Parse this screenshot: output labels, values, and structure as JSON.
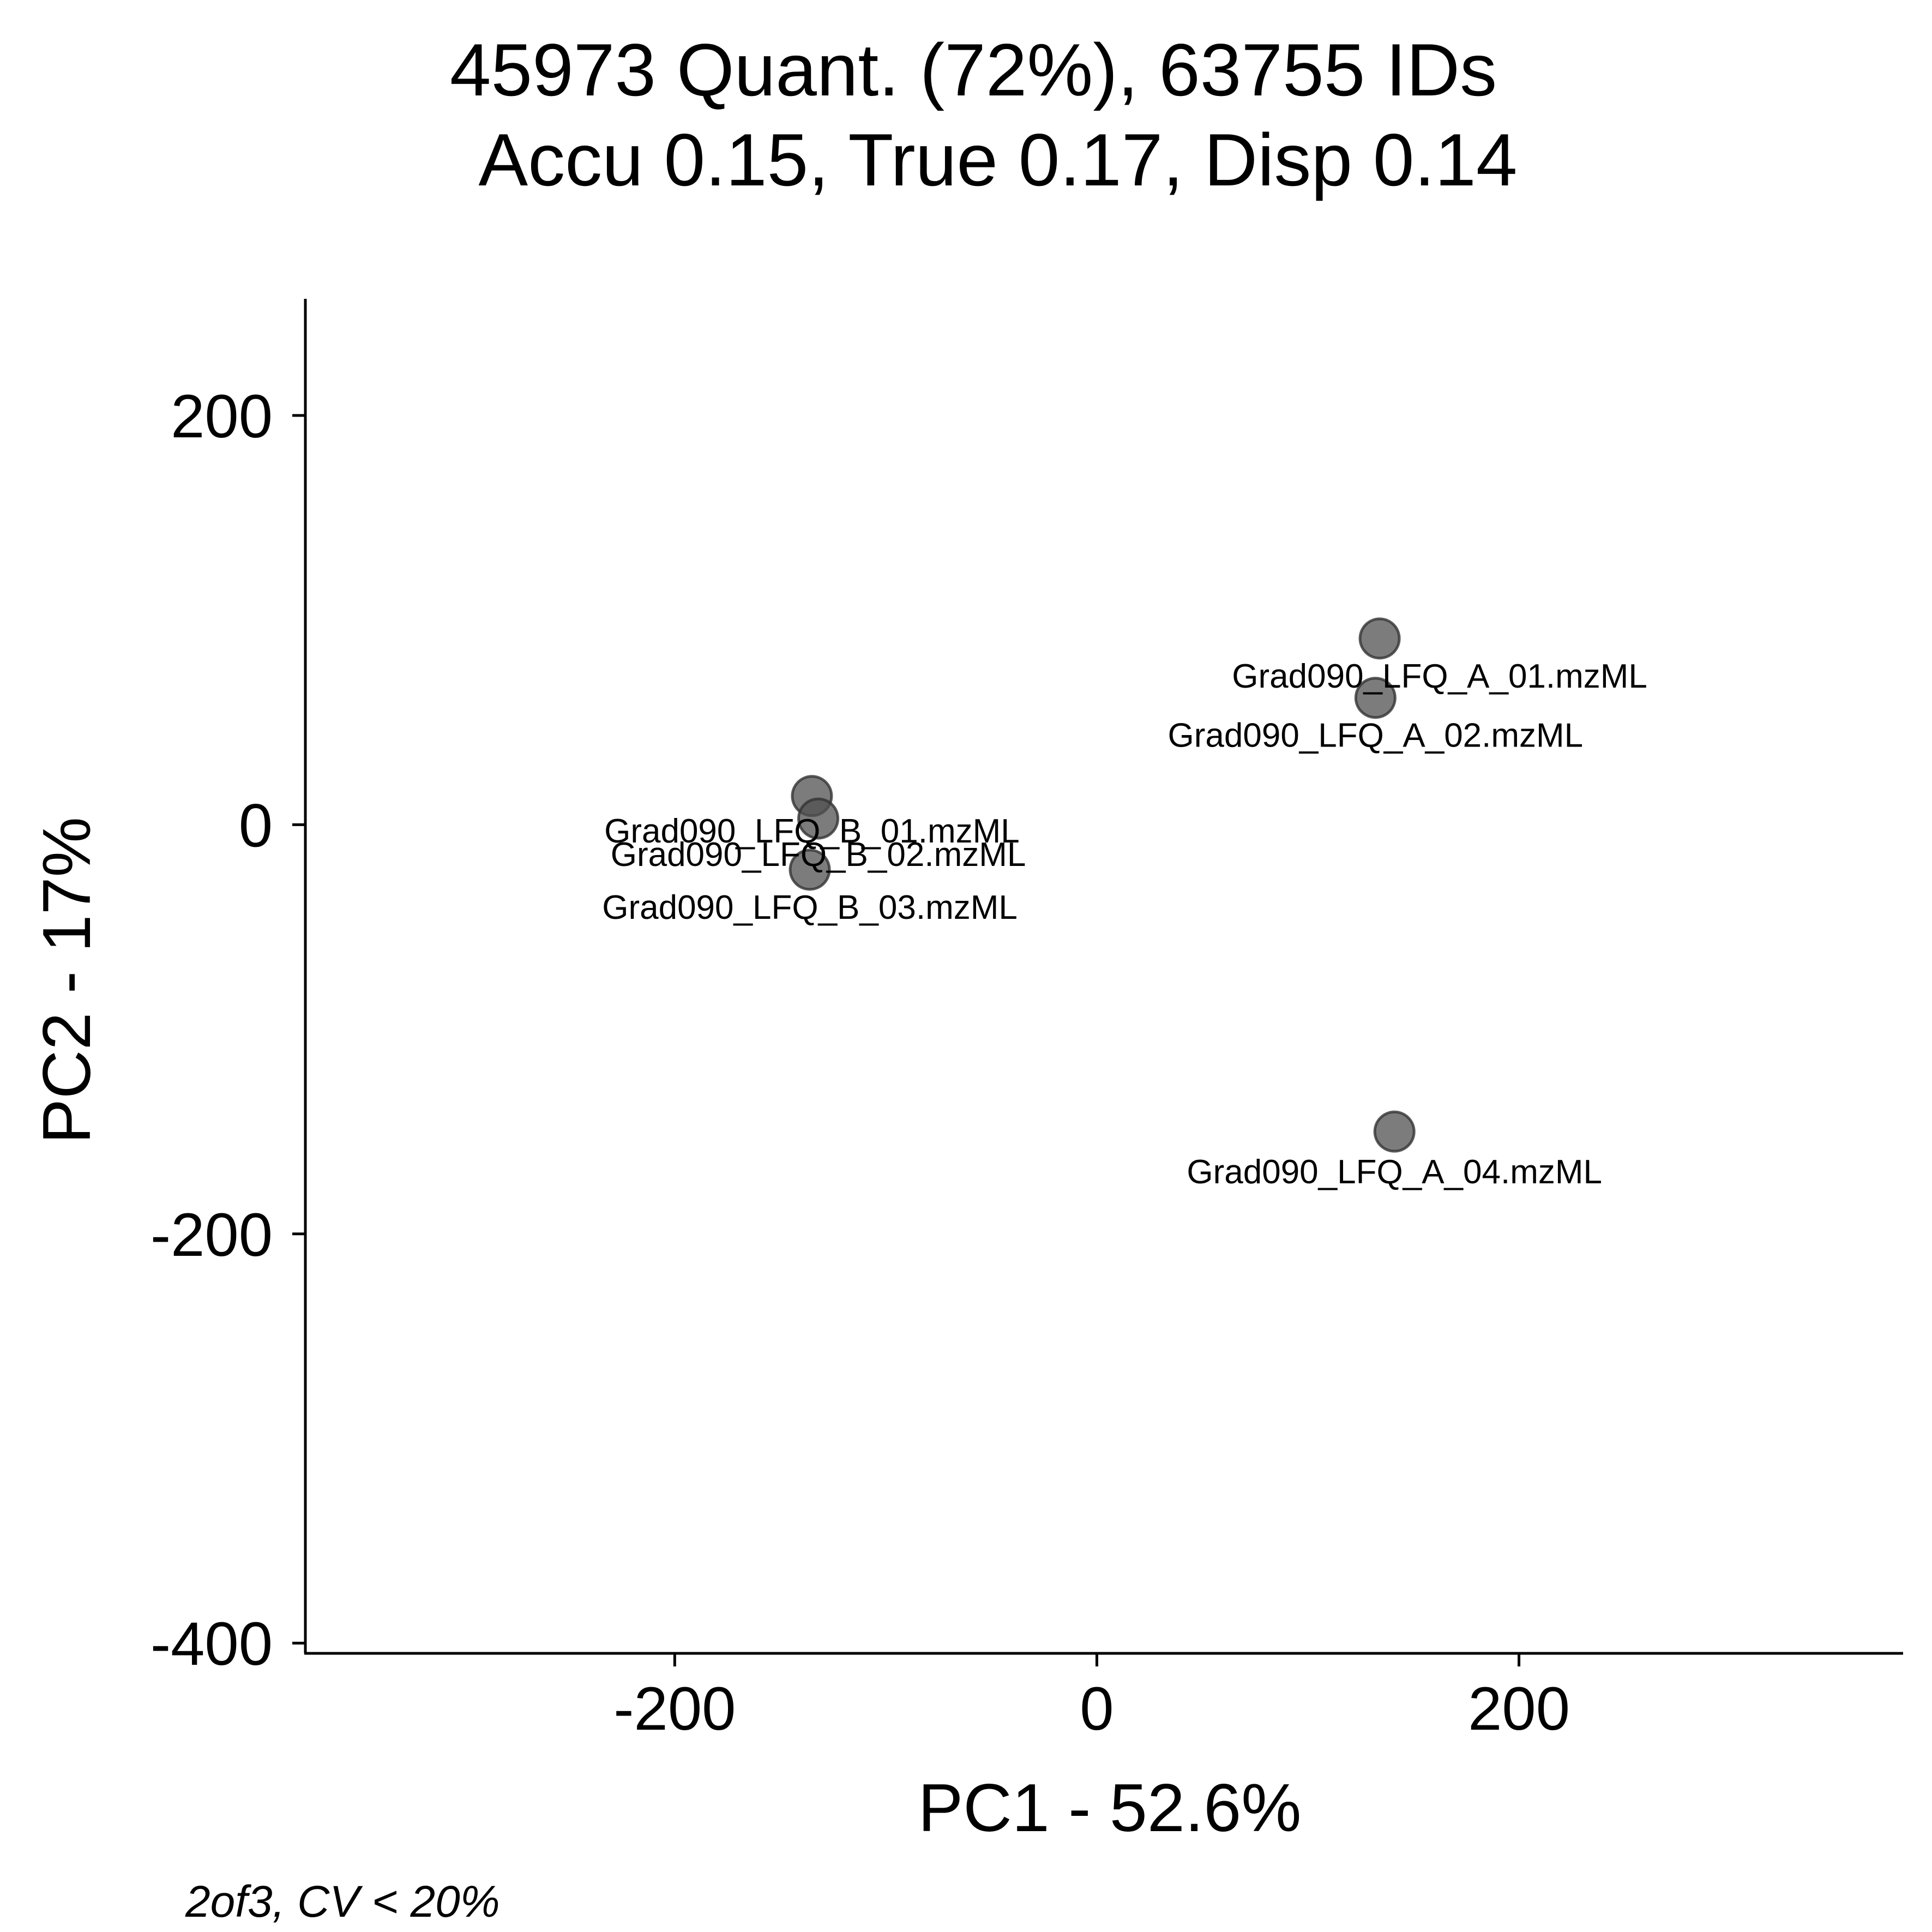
{
  "chart_data": {
    "type": "scatter",
    "title_lines": [
      "45973 Quant. (72%), 63755 IDs",
      "Accu 0.15, True 0.17, Disp 0.14"
    ],
    "xlabel": "PC1 - 52.6%",
    "ylabel": "PC2 - 17%",
    "caption": "2of3, CV < 20%",
    "xlim": [
      -375,
      382
    ],
    "ylim": [
      -405,
      257
    ],
    "xticks": [
      -200,
      0,
      200
    ],
    "yticks": [
      200,
      0,
      -200,
      -400
    ],
    "xtick_labels": [
      "-200",
      "0",
      "200"
    ],
    "ytick_labels": [
      "200",
      "0",
      "-200",
      "-400"
    ],
    "grid": false,
    "legend": "none",
    "point_color": "#505050",
    "points": [
      {
        "x": 134,
        "y": 91,
        "label": "Grad090_LFQ_A_01.mzML"
      },
      {
        "x": 132,
        "y": 62,
        "label": "Grad090_LFQ_A_02.mzML"
      },
      {
        "x": 141,
        "y": -150,
        "label": "Grad090_LFQ_A_04.mzML"
      },
      {
        "x": -135,
        "y": 14,
        "label": "Grad090_LFQ_B_01.mzML"
      },
      {
        "x": -132,
        "y": 3,
        "label": "Grad090_LFQ_B_02.mzML"
      },
      {
        "x": -136,
        "y": -22,
        "label": "Grad090_LFQ_B_03.mzML"
      }
    ]
  }
}
